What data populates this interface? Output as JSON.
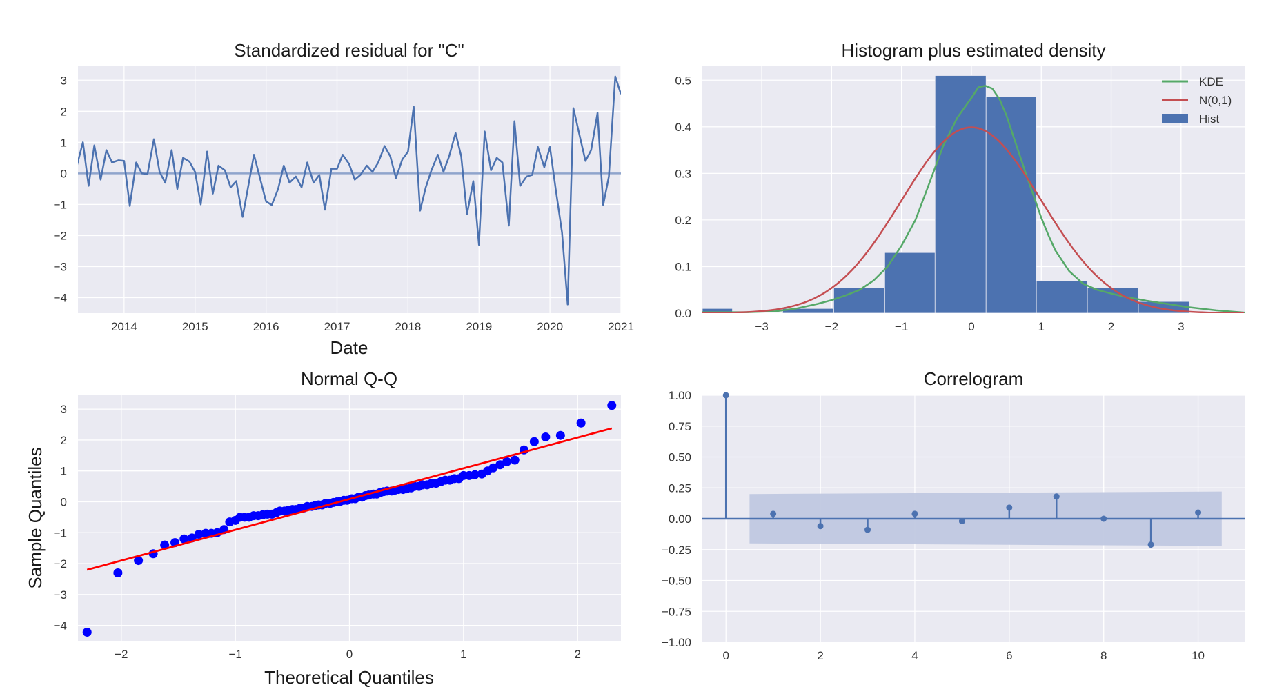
{
  "figure": {
    "background": "#ffffff",
    "axes_background": "#eaeaf2",
    "grid_color": "#ffffff"
  },
  "chart_data": [
    {
      "id": "resid",
      "type": "line",
      "title": "Standardized residual for \"C\"",
      "xlabel": "Date",
      "ylabel": "",
      "xlim": [
        2013.35,
        2021.0
      ],
      "ylim": [
        -4.5,
        3.45
      ],
      "xticks": [
        2014,
        2015,
        2016,
        2017,
        2018,
        2019,
        2020,
        2021
      ],
      "xtick_labels": [
        "2014",
        "2015",
        "2016",
        "2017",
        "2018",
        "2019",
        "2020",
        "2021"
      ],
      "yticks": [
        -4,
        -3,
        -2,
        -1,
        0,
        1,
        2,
        3
      ],
      "ytick_labels": [
        "−4",
        "−3",
        "−2",
        "−1",
        "0",
        "1",
        "2",
        "3"
      ],
      "grid": true,
      "line_color": "#4c72b0",
      "hline": {
        "y": 0,
        "color": "#8fa4cc"
      },
      "x": [
        2013.33,
        2013.42,
        2013.5,
        2013.58,
        2013.67,
        2013.75,
        2013.83,
        2013.92,
        2014.0,
        2014.08,
        2014.17,
        2014.25,
        2014.33,
        2014.42,
        2014.5,
        2014.58,
        2014.67,
        2014.75,
        2014.83,
        2014.92,
        2015.0,
        2015.08,
        2015.17,
        2015.25,
        2015.33,
        2015.42,
        2015.5,
        2015.58,
        2015.67,
        2015.75,
        2015.83,
        2015.92,
        2016.0,
        2016.08,
        2016.17,
        2016.25,
        2016.33,
        2016.42,
        2016.5,
        2016.58,
        2016.67,
        2016.75,
        2016.83,
        2016.92,
        2017.0,
        2017.08,
        2017.17,
        2017.25,
        2017.33,
        2017.42,
        2017.5,
        2017.58,
        2017.67,
        2017.75,
        2017.83,
        2017.92,
        2018.0,
        2018.08,
        2018.17,
        2018.25,
        2018.33,
        2018.42,
        2018.5,
        2018.58,
        2018.67,
        2018.75,
        2018.83,
        2018.92,
        2019.0,
        2019.08,
        2019.17,
        2019.25,
        2019.33,
        2019.42,
        2019.5,
        2019.58,
        2019.67,
        2019.75,
        2019.83,
        2019.92,
        2020.0,
        2020.08,
        2020.17,
        2020.25,
        2020.33,
        2020.42,
        2020.5,
        2020.58,
        2020.67,
        2020.75,
        2020.83,
        2020.92,
        2021.0
      ],
      "y": [
        0.2,
        1.0,
        -0.4,
        0.9,
        -0.2,
        0.75,
        0.35,
        0.42,
        0.4,
        -1.05,
        0.35,
        0.0,
        -0.02,
        1.1,
        0.05,
        -0.3,
        0.75,
        -0.5,
        0.5,
        0.38,
        0.05,
        -1.0,
        0.7,
        -0.65,
        0.25,
        0.1,
        -0.45,
        -0.25,
        -1.4,
        -0.4,
        0.6,
        -0.2,
        -0.9,
        -1.02,
        -0.5,
        0.25,
        -0.3,
        -0.1,
        -0.45,
        0.35,
        -0.3,
        -0.05,
        -1.17,
        0.15,
        0.15,
        0.6,
        0.3,
        -0.2,
        -0.05,
        0.25,
        0.05,
        0.35,
        0.88,
        0.55,
        -0.15,
        0.45,
        0.7,
        2.15,
        -1.2,
        -0.45,
        0.1,
        0.6,
        0.05,
        0.55,
        1.3,
        0.55,
        -1.32,
        -0.25,
        -2.3,
        1.35,
        0.1,
        0.5,
        0.35,
        -1.68,
        1.68,
        -0.4,
        -0.1,
        -0.05,
        0.85,
        0.2,
        0.85,
        -0.5,
        -1.9,
        -4.22,
        2.1,
        1.2,
        0.4,
        0.75,
        1.95,
        -1.02,
        -0.1,
        3.12,
        2.55
      ]
    },
    {
      "id": "hist",
      "type": "bar",
      "title": "Histogram plus estimated density",
      "xlim": [
        -3.85,
        3.92
      ],
      "ylim": [
        0,
        0.53
      ],
      "xticks": [
        -3,
        -2,
        -1,
        0,
        1,
        2,
        3
      ],
      "xtick_labels": [
        "−3",
        "−2",
        "−1",
        "0",
        "1",
        "2",
        "3"
      ],
      "yticks": [
        0.0,
        0.1,
        0.2,
        0.3,
        0.4,
        0.5
      ],
      "ytick_labels": [
        "0.0",
        "0.1",
        "0.2",
        "0.3",
        "0.4",
        "0.5"
      ],
      "grid": true,
      "legend_position": "top-right",
      "bins": [
        {
          "x0": -3.85,
          "x1": -3.42,
          "value": 0.01
        },
        {
          "x0": -2.7,
          "x1": -1.97,
          "value": 0.01
        },
        {
          "x0": -1.97,
          "x1": -1.24,
          "value": 0.055
        },
        {
          "x0": -1.24,
          "x1": -0.52,
          "value": 0.13
        },
        {
          "x0": -0.52,
          "x1": 0.21,
          "value": 0.51
        },
        {
          "x0": 0.21,
          "x1": 0.93,
          "value": 0.465
        },
        {
          "x0": 0.93,
          "x1": 1.66,
          "value": 0.07
        },
        {
          "x0": 1.66,
          "x1": 2.39,
          "value": 0.055
        },
        {
          "x0": 2.39,
          "x1": 3.12,
          "value": 0.025
        }
      ],
      "series": [
        {
          "name": "KDE",
          "color": "#55a868",
          "x": [
            -3.9,
            -3.2,
            -2.8,
            -2.5,
            -2.2,
            -2.0,
            -1.8,
            -1.6,
            -1.4,
            -1.2,
            -1.0,
            -0.8,
            -0.6,
            -0.4,
            -0.2,
            0.0,
            0.1,
            0.2,
            0.3,
            0.4,
            0.5,
            0.6,
            0.7,
            0.8,
            0.9,
            1.0,
            1.1,
            1.2,
            1.4,
            1.6,
            1.8,
            2.0,
            2.2,
            2.5,
            2.8,
            3.1,
            3.5,
            3.92
          ],
          "y": [
            0.002,
            0.002,
            0.004,
            0.01,
            0.02,
            0.028,
            0.038,
            0.05,
            0.07,
            0.1,
            0.145,
            0.2,
            0.28,
            0.36,
            0.42,
            0.462,
            0.485,
            0.488,
            0.482,
            0.46,
            0.425,
            0.38,
            0.335,
            0.29,
            0.248,
            0.205,
            0.168,
            0.135,
            0.09,
            0.063,
            0.05,
            0.042,
            0.035,
            0.027,
            0.02,
            0.013,
            0.006,
            0.001
          ]
        },
        {
          "name": "N(0,1)",
          "color": "#c44e52",
          "x": [],
          "y": [],
          "mean": 0,
          "std": 1
        },
        {
          "name": "Hist",
          "color": "#4c72b0"
        }
      ]
    },
    {
      "id": "qq",
      "type": "scatter",
      "title": "Normal Q-Q",
      "xlabel": "Theoretical Quantiles",
      "ylabel": "Sample Quantiles",
      "xlim": [
        -2.38,
        2.38
      ],
      "ylim": [
        -4.5,
        3.45
      ],
      "xticks": [
        -2,
        -1,
        0,
        1,
        2
      ],
      "xtick_labels": [
        "−2",
        "−1",
        "0",
        "1",
        "2"
      ],
      "yticks": [
        -4,
        -3,
        -2,
        -1,
        0,
        1,
        2,
        3
      ],
      "ytick_labels": [
        "−4",
        "−3",
        "−2",
        "−1",
        "0",
        "1",
        "2",
        "3"
      ],
      "grid": true,
      "point_color": "#0000ff",
      "line": {
        "color": "#ff0000",
        "x": [
          -2.3,
          2.3
        ],
        "y": [
          -2.2,
          2.38
        ]
      },
      "x": [
        -2.3,
        -2.03,
        -1.85,
        -1.72,
        -1.62,
        -1.53,
        -1.45,
        -1.38,
        -1.32,
        -1.26,
        -1.21,
        -1.16,
        -1.1,
        -1.05,
        -1.0,
        -0.96,
        -0.92,
        -0.88,
        -0.84,
        -0.8,
        -0.76,
        -0.72,
        -0.68,
        -0.64,
        -0.61,
        -0.57,
        -0.54,
        -0.5,
        -0.47,
        -0.43,
        -0.4,
        -0.37,
        -0.33,
        -0.3,
        -0.27,
        -0.24,
        -0.21,
        -0.17,
        -0.14,
        -0.11,
        -0.08,
        -0.05,
        -0.02,
        0.02,
        0.05,
        0.08,
        0.11,
        0.14,
        0.17,
        0.21,
        0.24,
        0.27,
        0.3,
        0.33,
        0.37,
        0.4,
        0.43,
        0.47,
        0.5,
        0.54,
        0.57,
        0.61,
        0.64,
        0.68,
        0.72,
        0.76,
        0.8,
        0.84,
        0.88,
        0.92,
        0.96,
        1.0,
        1.05,
        1.1,
        1.16,
        1.21,
        1.26,
        1.32,
        1.38,
        1.45,
        1.53,
        1.62,
        1.72,
        1.85,
        2.03,
        2.3
      ],
      "y": [
        -4.22,
        -2.3,
        -1.9,
        -1.68,
        -1.4,
        -1.32,
        -1.2,
        -1.17,
        -1.05,
        -1.02,
        -1.02,
        -1.0,
        -0.9,
        -0.65,
        -0.6,
        -0.5,
        -0.5,
        -0.5,
        -0.45,
        -0.45,
        -0.42,
        -0.4,
        -0.4,
        -0.35,
        -0.3,
        -0.3,
        -0.28,
        -0.25,
        -0.25,
        -0.2,
        -0.2,
        -0.15,
        -0.15,
        -0.12,
        -0.1,
        -0.1,
        -0.05,
        -0.05,
        -0.02,
        0.0,
        0.02,
        0.05,
        0.05,
        0.1,
        0.1,
        0.15,
        0.15,
        0.2,
        0.22,
        0.25,
        0.25,
        0.3,
        0.33,
        0.35,
        0.35,
        0.38,
        0.4,
        0.4,
        0.42,
        0.45,
        0.5,
        0.5,
        0.55,
        0.55,
        0.6,
        0.6,
        0.65,
        0.7,
        0.7,
        0.75,
        0.75,
        0.85,
        0.85,
        0.88,
        0.9,
        1.0,
        1.1,
        1.2,
        1.3,
        1.35,
        1.68,
        1.95,
        2.1,
        2.15,
        2.55,
        3.12
      ]
    },
    {
      "id": "acf",
      "type": "line",
      "title": "Correlogram",
      "xlim": [
        -0.5,
        11.0
      ],
      "ylim": [
        -1.0,
        1.0
      ],
      "xticks": [
        0,
        2,
        4,
        6,
        8,
        10
      ],
      "xtick_labels": [
        "0",
        "2",
        "4",
        "6",
        "8",
        "10"
      ],
      "yticks": [
        -1.0,
        -0.75,
        -0.5,
        -0.25,
        0.0,
        0.25,
        0.5,
        0.75,
        1.0
      ],
      "ytick_labels": [
        "−1.00",
        "−0.75",
        "−0.50",
        "−0.25",
        "0.00",
        "0.25",
        "0.50",
        "0.75",
        "1.00"
      ],
      "grid": true,
      "color": "#4c72b0",
      "band_color": "#c0c8e0",
      "lags": [
        0,
        1,
        2,
        3,
        4,
        5,
        6,
        7,
        8,
        9,
        10
      ],
      "values": [
        1.0,
        0.04,
        -0.06,
        -0.09,
        0.04,
        -0.02,
        0.09,
        0.18,
        0.0,
        -0.21,
        0.05
      ],
      "confint": {
        "x": [
          0.5,
          10.5
        ],
        "upper": [
          0.2,
          0.22
        ],
        "lower": [
          -0.2,
          -0.22
        ]
      }
    }
  ]
}
